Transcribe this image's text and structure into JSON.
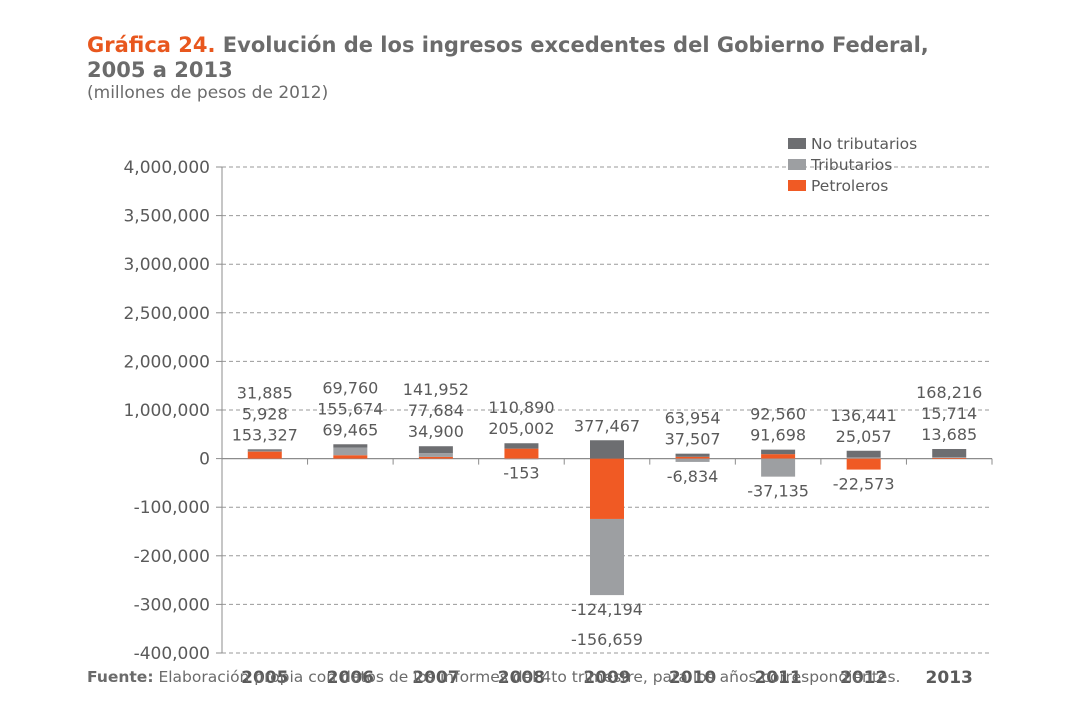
{
  "header": {
    "label": "Gráfica 24.",
    "title_line1": "Evolución de los ingresos excedentes del Gobierno Federal,",
    "title_line2": "2005 a 2013",
    "subtitle": "(millones de pesos de 2012)"
  },
  "footer": {
    "source_label": "Fuente:",
    "source_text": " Elaboración propia con datos de los informes del 4to trimestre, para los años correspondientes."
  },
  "colors": {
    "no_tributarios": "#6d6e71",
    "tributarios": "#9d9fa2",
    "petroleros": "#f05a24",
    "axis": "#8c8c8c",
    "text": "#5a5a5a",
    "accent": "#e8571e"
  },
  "chart_data": {
    "type": "bar",
    "stacked": true,
    "categories": [
      "2005",
      "2006",
      "2007",
      "2008",
      "2009",
      "2010",
      "2011",
      "2012",
      "2013"
    ],
    "y_ticks": [
      "4,000,000",
      "3,500,000",
      "3,000,000",
      "2,500,000",
      "2,000,000",
      "1,000,000",
      "0",
      "-100,000",
      "-200,000",
      "-300,000",
      "-400,000"
    ],
    "y_tick_values": [
      4000000,
      3500000,
      3000000,
      2500000,
      2000000,
      1000000,
      0,
      -100000,
      -200000,
      -300000,
      -400000
    ],
    "grid": true,
    "legend_position": "top-right",
    "series": [
      {
        "name": "Petroleros",
        "values": [
          153327,
          69465,
          34900,
          205002,
          -124194,
          37507,
          91698,
          -22573,
          13685
        ]
      },
      {
        "name": "Tributarios",
        "values": [
          5928,
          155674,
          77684,
          -153,
          -156659,
          -6834,
          -37135,
          25057,
          15714
        ]
      },
      {
        "name": "No tributarios",
        "values": [
          31885,
          69760,
          141952,
          110890,
          377467,
          63954,
          92560,
          136441,
          168216
        ]
      }
    ],
    "bar_labels": [
      [
        "31,885",
        "5,928",
        "153,327"
      ],
      [
        "69,760",
        "155,674",
        "69,465"
      ],
      [
        "141,952",
        "77,684",
        "34,900"
      ],
      [
        "110,890",
        "205,002"
      ],
      [
        "377,467"
      ],
      [
        "63,954",
        "37,507"
      ],
      [
        "92,560",
        "91,698"
      ],
      [
        "136,441",
        "25,057"
      ],
      [
        "168,216",
        "15,714",
        "13,685"
      ]
    ],
    "neg_labels": [
      [],
      [],
      [],
      [
        "-153"
      ],
      [
        "-124,194",
        "-156,659"
      ],
      [
        "-6,834"
      ],
      [
        "-37,135"
      ],
      [
        "-22,573"
      ],
      []
    ]
  }
}
